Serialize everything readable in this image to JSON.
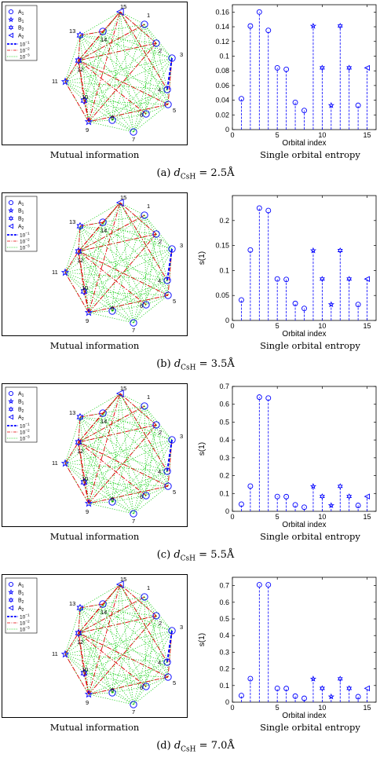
{
  "legend": {
    "markers": [
      {
        "label": "A1",
        "main": "A",
        "sub": "1",
        "shape": "circle"
      },
      {
        "label": "B1",
        "main": "B",
        "sub": "1",
        "shape": "star5"
      },
      {
        "label": "B2",
        "main": "B",
        "sub": "2",
        "shape": "star6"
      },
      {
        "label": "A2",
        "main": "A",
        "sub": "2",
        "shape": "triangle-left"
      }
    ],
    "lines": [
      {
        "label": "10^-1",
        "base": "10",
        "exp": "−1",
        "style": "dashed-blue"
      },
      {
        "label": "10^-2",
        "base": "10",
        "exp": "−2",
        "style": "dashdot-red"
      },
      {
        "label": "10^-3",
        "base": "10",
        "exp": "−3",
        "style": "dotted-green"
      }
    ]
  },
  "graph_node_labels": [
    "1",
    "2",
    "3",
    "4",
    "5",
    "6",
    "7",
    "8",
    "9",
    "10",
    "11",
    "12",
    "13",
    "14",
    "15"
  ],
  "node_symmetry": [
    "A1",
    "A1",
    "A1",
    "A1",
    "A1",
    "A1",
    "A1",
    "A1",
    "B1",
    "B2",
    "B1",
    "B2",
    "B2",
    "A1",
    "A2"
  ],
  "left_sublabel": "Mutual information",
  "right_sublabel": "Single orbital entropy",
  "colors": {
    "marker": "#0000ff",
    "strong": "#0000ff",
    "medium": "#e00000",
    "weak": "#00cc00"
  },
  "panels": [
    {
      "letter": "(a)",
      "var": "d",
      "subscript": "CsH",
      "equals": "=",
      "value": "2.5Å",
      "chart_data": {
        "type": "stem",
        "xlabel": "Orbital index",
        "ylabel": "s(1)",
        "ylabel_printed": false,
        "xlim": [
          0,
          16
        ],
        "ylim": [
          0,
          0.17
        ],
        "xticks": [
          "0",
          "5",
          "10",
          "15"
        ],
        "yticks": [
          "0",
          "0.02",
          "0.04",
          "0.06",
          "0.08",
          "0.1",
          "0.12",
          "0.14",
          "0.16"
        ],
        "x": [
          1,
          2,
          3,
          4,
          5,
          6,
          7,
          8,
          9,
          10,
          11,
          12,
          13,
          14,
          15
        ],
        "values": [
          0.042,
          0.141,
          0.16,
          0.135,
          0.084,
          0.082,
          0.037,
          0.026,
          0.141,
          0.084,
          0.033,
          0.141,
          0.084,
          0.033,
          0.084
        ]
      }
    },
    {
      "letter": "(b)",
      "var": "d",
      "subscript": "CsH",
      "equals": "=",
      "value": "3.5Å",
      "chart_data": {
        "type": "stem",
        "xlabel": "Orbital index",
        "ylabel": "s(1)",
        "ylabel_printed": true,
        "xlim": [
          0,
          16
        ],
        "ylim": [
          0,
          0.25
        ],
        "xticks": [
          "0",
          "5",
          "10",
          "15"
        ],
        "yticks": [
          "0",
          "0.05",
          "0.1",
          "0.15",
          "0.2"
        ],
        "x": [
          1,
          2,
          3,
          4,
          5,
          6,
          7,
          8,
          9,
          10,
          11,
          12,
          13,
          14,
          15
        ],
        "values": [
          0.041,
          0.141,
          0.225,
          0.22,
          0.083,
          0.082,
          0.034,
          0.024,
          0.14,
          0.083,
          0.032,
          0.14,
          0.083,
          0.032,
          0.083
        ]
      }
    },
    {
      "letter": "(c)",
      "var": "d",
      "subscript": "CsH",
      "equals": "=",
      "value": "5.5Å",
      "chart_data": {
        "type": "stem",
        "xlabel": "Orbital index",
        "ylabel": "s(1)",
        "ylabel_printed": true,
        "xlim": [
          0,
          16
        ],
        "ylim": [
          0,
          0.7
        ],
        "xticks": [
          "0",
          "5",
          "10",
          "15"
        ],
        "yticks": [
          "0",
          "0.1",
          "0.2",
          "0.3",
          "0.4",
          "0.5",
          "0.6",
          "0.7"
        ],
        "x": [
          1,
          2,
          3,
          4,
          5,
          6,
          7,
          8,
          9,
          10,
          11,
          12,
          13,
          14,
          15
        ],
        "values": [
          0.04,
          0.141,
          0.64,
          0.635,
          0.083,
          0.082,
          0.036,
          0.023,
          0.14,
          0.083,
          0.033,
          0.14,
          0.083,
          0.033,
          0.083
        ]
      }
    },
    {
      "letter": "(d)",
      "var": "d",
      "subscript": "CsH",
      "equals": "=",
      "value": "7.0Å",
      "chart_data": {
        "type": "stem",
        "xlabel": "Orbital index",
        "ylabel": "s(1)",
        "ylabel_printed": true,
        "xlim": [
          0,
          16
        ],
        "ylim": [
          0,
          0.75
        ],
        "xticks": [
          "0",
          "5",
          "10",
          "15"
        ],
        "yticks": [
          "0",
          "0.1",
          "0.2",
          "0.3",
          "0.4",
          "0.5",
          "0.6",
          "0.7"
        ],
        "x": [
          1,
          2,
          3,
          4,
          5,
          6,
          7,
          8,
          9,
          10,
          11,
          12,
          13,
          14,
          15
        ],
        "values": [
          0.04,
          0.141,
          0.705,
          0.705,
          0.083,
          0.082,
          0.036,
          0.023,
          0.14,
          0.083,
          0.033,
          0.14,
          0.083,
          0.033,
          0.083
        ]
      }
    }
  ]
}
